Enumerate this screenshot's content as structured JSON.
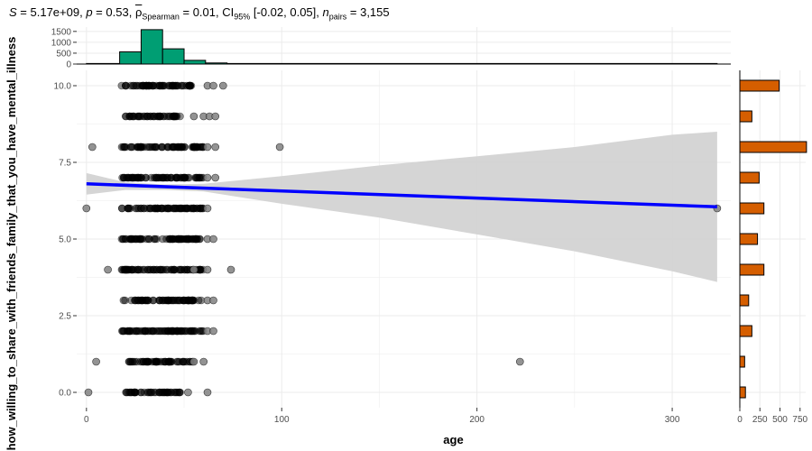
{
  "header": {
    "stat_S": "5.17e+09",
    "p_value": "0.53",
    "rho_label": "ρ",
    "rho_sub": "Spearman",
    "rho_value": "0.01",
    "ci_label": "CI",
    "ci_sub": "95%",
    "ci_value": "[-0.02, 0.05]",
    "n_label": "n",
    "n_sub": "pairs",
    "n_value": "3,155"
  },
  "colors": {
    "top_hist_fill": "#009E73",
    "side_hist_fill": "#D55E00",
    "point_fill": "#000000",
    "outlier_fill": "#808080",
    "line_color": "#0000FF",
    "ribbon_color": "#D3D3D3",
    "grid_color": "#EBEBEB"
  },
  "chart_data": {
    "type": "scatter",
    "xlabel": "age",
    "ylabel": "how_willing_to_share_with_friends_family_that_you_have_mental_illness",
    "xlim": [
      -5,
      330
    ],
    "ylim": [
      -0.5,
      10.5
    ],
    "x_ticks": [
      0,
      100,
      200,
      300
    ],
    "x_tick_labels": [
      "0",
      "100",
      "200",
      "300"
    ],
    "y_ticks": [
      0,
      2.5,
      5,
      7.5,
      10
    ],
    "y_tick_labels": [
      "0.0",
      "2.5",
      "5.0",
      "7.5",
      "10.0"
    ],
    "point_bands": [
      {
        "y": 10,
        "x_min": 18,
        "x_max": 56
      },
      {
        "y": 9,
        "x_min": 20,
        "x_max": 48
      },
      {
        "y": 8,
        "x_min": 18,
        "x_max": 60
      },
      {
        "y": 7,
        "x_min": 18,
        "x_max": 60
      },
      {
        "y": 6,
        "x_min": 18,
        "x_max": 60
      },
      {
        "y": 5,
        "x_min": 18,
        "x_max": 60
      },
      {
        "y": 4,
        "x_min": 18,
        "x_max": 60
      },
      {
        "y": 3,
        "x_min": 18,
        "x_max": 60
      },
      {
        "y": 2,
        "x_min": 17,
        "x_max": 60
      },
      {
        "y": 1,
        "x_min": 21,
        "x_max": 55
      },
      {
        "y": 0,
        "x_min": 20,
        "x_max": 48
      }
    ],
    "outliers": [
      {
        "x": 62,
        "y": 10
      },
      {
        "x": 65,
        "y": 10
      },
      {
        "x": 70,
        "y": 10
      },
      {
        "x": 55,
        "y": 9
      },
      {
        "x": 60,
        "y": 9
      },
      {
        "x": 63,
        "y": 9
      },
      {
        "x": 66,
        "y": 9
      },
      {
        "x": 3,
        "y": 8
      },
      {
        "x": 62,
        "y": 8
      },
      {
        "x": 66,
        "y": 8
      },
      {
        "x": 99,
        "y": 8
      },
      {
        "x": 62,
        "y": 7
      },
      {
        "x": 66,
        "y": 7
      },
      {
        "x": 0,
        "y": 6
      },
      {
        "x": 62,
        "y": 6
      },
      {
        "x": 323,
        "y": 6
      },
      {
        "x": 62,
        "y": 5
      },
      {
        "x": 65,
        "y": 5
      },
      {
        "x": 11,
        "y": 4
      },
      {
        "x": 55,
        "y": 4
      },
      {
        "x": 62,
        "y": 4
      },
      {
        "x": 74,
        "y": 4
      },
      {
        "x": 62,
        "y": 3
      },
      {
        "x": 65,
        "y": 3
      },
      {
        "x": 62,
        "y": 2
      },
      {
        "x": 65,
        "y": 2
      },
      {
        "x": 5,
        "y": 1
      },
      {
        "x": 55,
        "y": 1
      },
      {
        "x": 60,
        "y": 1
      },
      {
        "x": 222,
        "y": 1
      },
      {
        "x": 1,
        "y": 0
      },
      {
        "x": 52,
        "y": 0
      },
      {
        "x": 62,
        "y": 0
      }
    ],
    "fit_line": {
      "x": [
        0,
        323
      ],
      "y": [
        6.8,
        6.05
      ]
    },
    "confidence_band": {
      "x": [
        0,
        20,
        40,
        60,
        100,
        150,
        200,
        250,
        300,
        323
      ],
      "upper": [
        7.15,
        6.85,
        6.78,
        6.8,
        7.05,
        7.4,
        7.7,
        8.0,
        8.4,
        8.5
      ],
      "lower": [
        6.45,
        6.6,
        6.6,
        6.55,
        6.15,
        5.7,
        5.15,
        4.6,
        3.95,
        3.6
      ]
    },
    "top_histogram": {
      "bins": [
        {
          "x0": 0,
          "x1": 17,
          "count": 20
        },
        {
          "x0": 17,
          "x1": 28,
          "count": 560
        },
        {
          "x0": 28,
          "x1": 39,
          "count": 1580
        },
        {
          "x0": 39,
          "x1": 50,
          "count": 700
        },
        {
          "x0": 50,
          "x1": 61,
          "count": 170
        },
        {
          "x0": 61,
          "x1": 72,
          "count": 50
        },
        {
          "x0": 72,
          "x1": 323,
          "count": 6
        }
      ],
      "y_ticks": [
        0,
        500,
        1000,
        1500
      ],
      "y_tick_labels": [
        "0",
        "500",
        "1000",
        "1500"
      ],
      "ymax": 1700
    },
    "side_histogram": {
      "bins": [
        {
          "y": 10,
          "count": 490
        },
        {
          "y": 9,
          "count": 150
        },
        {
          "y": 8,
          "count": 830
        },
        {
          "y": 7,
          "count": 240
        },
        {
          "y": 6,
          "count": 300
        },
        {
          "y": 5,
          "count": 220
        },
        {
          "y": 4,
          "count": 300
        },
        {
          "y": 3,
          "count": 110
        },
        {
          "y": 2,
          "count": 150
        },
        {
          "y": 1,
          "count": 60
        },
        {
          "y": 0,
          "count": 70
        }
      ],
      "x_ticks": [
        0,
        250,
        500,
        750
      ],
      "x_tick_labels": [
        "0",
        "250",
        "500",
        "750"
      ],
      "xmax": 820
    }
  }
}
